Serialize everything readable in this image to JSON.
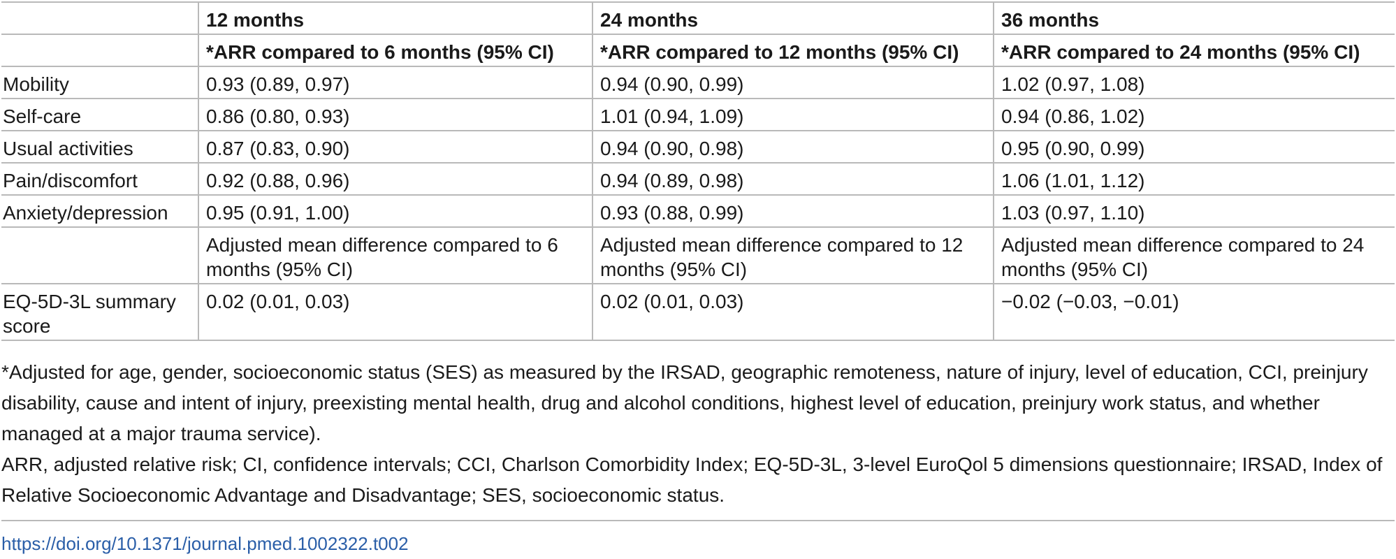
{
  "table": {
    "header_row": [
      "",
      "12 months",
      "24 months",
      "36 months"
    ],
    "subheader_row": [
      "",
      "*ARR compared to 6 months (95% CI)",
      "*ARR compared to 12 months (95% CI)",
      "*ARR compared to 24 months (95% CI)"
    ],
    "rows": [
      {
        "label": "Mobility",
        "values": [
          "0.93 (0.89, 0.97)",
          "0.94 (0.90, 0.99)",
          "1.02 (0.97, 1.08)"
        ]
      },
      {
        "label": "Self-care",
        "values": [
          "0.86 (0.80, 0.93)",
          "1.01 (0.94, 1.09)",
          "0.94 (0.86, 1.02)"
        ]
      },
      {
        "label": "Usual activities",
        "values": [
          "0.87 (0.83, 0.90)",
          "0.94 (0.90, 0.98)",
          "0.95 (0.90, 0.99)"
        ]
      },
      {
        "label": "Pain/discomfort",
        "values": [
          "0.92 (0.88, 0.96)",
          "0.94 (0.89, 0.98)",
          "1.06 (1.01, 1.12)"
        ]
      },
      {
        "label": "Anxiety/depression",
        "values": [
          "0.95 (0.91, 1.00)",
          "0.93 (0.88, 0.99)",
          "1.03 (0.97, 1.10)"
        ]
      }
    ],
    "mean_diff_header": [
      "",
      "Adjusted mean difference compared to 6 months (95% CI)",
      "Adjusted mean difference compared to 12 months (95% CI)",
      "Adjusted mean difference compared to 24 months (95% CI)"
    ],
    "summary_row": {
      "label": "EQ-5D-3L summary score",
      "values": [
        "0.02 (0.01, 0.03)",
        "0.02 (0.01, 0.03)",
        "−0.02 (−0.03, −0.01)"
      ]
    }
  },
  "footnotes": [
    "*Adjusted for age, gender, socioeconomic status (SES) as measured by the IRSAD, geographic remoteness, nature of injury, level of education, CCI, preinjury disability, cause and intent of injury, preexisting mental health, drug and alcohol conditions, highest level of education, preinjury work status, and whether managed at a major trauma service).",
    "ARR, adjusted relative risk; CI, confidence intervals; CCI, Charlson Comorbidity Index; EQ-5D-3L, 3-level EuroQol 5 dimensions questionnaire; IRSAD, Index of Relative Socioeconomic Advantage and Disadvantage; SES, socioeconomic status."
  ],
  "doi_link": "https://doi.org/10.1371/journal.pmed.1002322.t002",
  "colors": {
    "text": "#1a1a1a",
    "rule": "#b9b9b9",
    "link": "#2a5ea8"
  }
}
